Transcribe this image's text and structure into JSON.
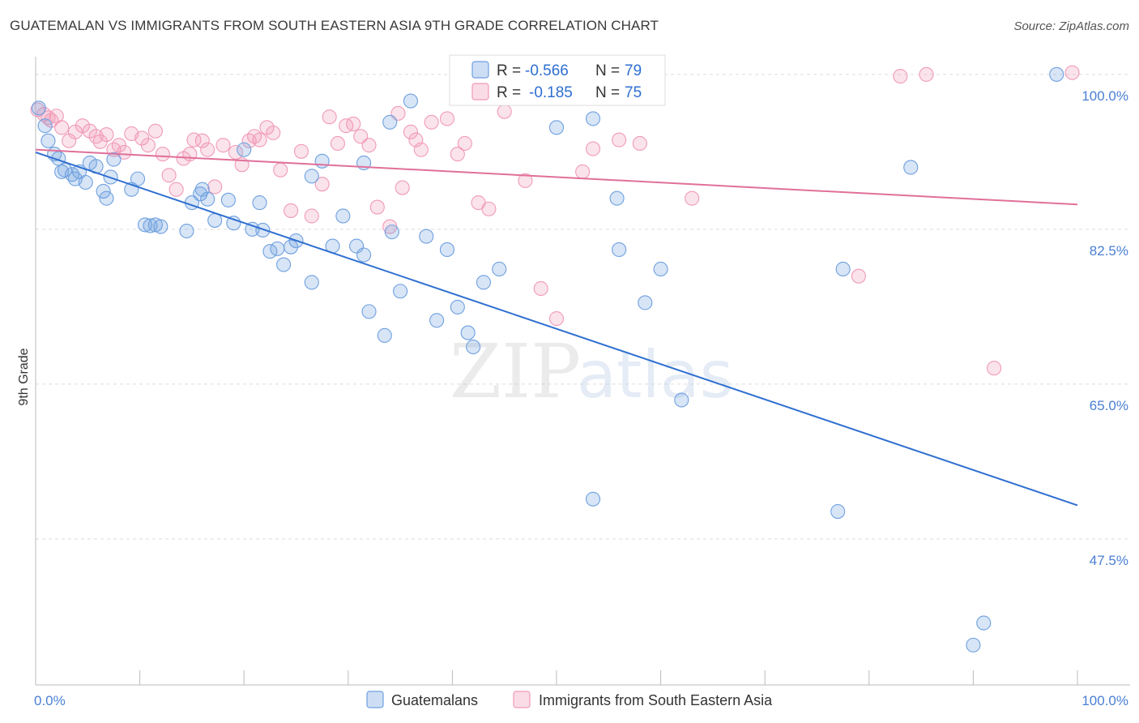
{
  "header": {
    "title": "GUATEMALAN VS IMMIGRANTS FROM SOUTH EASTERN ASIA 9TH GRADE CORRELATION CHART",
    "source": "Source: ZipAtlas.com"
  },
  "watermark": {
    "zip": "ZIP",
    "atlas": "atlas"
  },
  "colors": {
    "blue": "#6fa0e0",
    "blue_line": "#2f6fd0",
    "pink": "#f09ab8",
    "pink_line": "#e0709a",
    "tick_text": "#4a7fd4"
  },
  "stats_legend": {
    "blue": {
      "r_label": "R =",
      "r_value": "-0.566",
      "n_label": "N =",
      "n_value": "79"
    },
    "pink": {
      "r_label": "R =",
      "r_value": "-0.185",
      "n_label": "N =",
      "n_value": "75"
    }
  },
  "chart_data": {
    "type": "scatter",
    "title": "GUATEMALAN VS IMMIGRANTS FROM SOUTH EASTERN ASIA 9TH GRADE CORRELATION CHART",
    "xlabel": "",
    "ylabel": "9th Grade",
    "xlim": [
      0,
      100
    ],
    "ylim": [
      31,
      102
    ],
    "x_tick_labels": [
      "0.0%",
      "100.0%"
    ],
    "y_ticks": [
      100.0,
      82.5,
      65.0,
      47.5
    ],
    "y_tick_labels": [
      "100.0%",
      "82.5%",
      "65.0%",
      "47.5%"
    ],
    "grid": true,
    "legend_position": "bottom",
    "series": [
      {
        "name": "Guatemalans",
        "color": "#6fa0e0",
        "trend": {
          "x": [
            0,
            100
          ],
          "y": [
            91.2,
            51.3
          ]
        },
        "points": [
          [
            0.3,
            96.2
          ],
          [
            0.9,
            94.2
          ],
          [
            1.2,
            92.5
          ],
          [
            1.8,
            91.0
          ],
          [
            2.2,
            90.5
          ],
          [
            2.5,
            89.0
          ],
          [
            2.8,
            89.2
          ],
          [
            3.5,
            88.7
          ],
          [
            3.8,
            88.2
          ],
          [
            4.2,
            89.0
          ],
          [
            4.8,
            87.8
          ],
          [
            5.2,
            90.0
          ],
          [
            5.8,
            89.6
          ],
          [
            6.5,
            86.8
          ],
          [
            6.8,
            86.0
          ],
          [
            7.2,
            88.4
          ],
          [
            7.5,
            90.4
          ],
          [
            9.2,
            87.0
          ],
          [
            9.8,
            88.2
          ],
          [
            10.5,
            83.0
          ],
          [
            11.0,
            82.9
          ],
          [
            11.5,
            83.0
          ],
          [
            12.0,
            82.8
          ],
          [
            14.5,
            82.3
          ],
          [
            15.0,
            85.5
          ],
          [
            15.8,
            86.5
          ],
          [
            16.5,
            85.9
          ],
          [
            17.2,
            83.5
          ],
          [
            18.5,
            85.8
          ],
          [
            19.0,
            83.2
          ],
          [
            20.0,
            91.5
          ],
          [
            20.8,
            82.5
          ],
          [
            21.5,
            85.5
          ],
          [
            21.8,
            82.4
          ],
          [
            22.5,
            80.0
          ],
          [
            23.2,
            80.3
          ],
          [
            23.8,
            78.5
          ],
          [
            24.5,
            80.5
          ],
          [
            25.0,
            81.2
          ],
          [
            26.5,
            76.5
          ],
          [
            26.5,
            88.5
          ],
          [
            27.5,
            90.2
          ],
          [
            28.5,
            80.6
          ],
          [
            29.5,
            84.0
          ],
          [
            30.8,
            80.6
          ],
          [
            31.5,
            90.0
          ],
          [
            31.5,
            79.6
          ],
          [
            32.0,
            73.2
          ],
          [
            33.5,
            70.5
          ],
          [
            34.0,
            94.6
          ],
          [
            34.2,
            82.2
          ],
          [
            35.0,
            75.5
          ],
          [
            36.0,
            97.0
          ],
          [
            37.5,
            81.7
          ],
          [
            38.5,
            72.2
          ],
          [
            39.5,
            80.2
          ],
          [
            40.5,
            73.7
          ],
          [
            41.5,
            70.8
          ],
          [
            42.0,
            69.2
          ],
          [
            43.0,
            76.5
          ],
          [
            44.5,
            78.0
          ],
          [
            46.5,
            97.5
          ],
          [
            47.2,
            100.0
          ],
          [
            50.0,
            94.0
          ],
          [
            53.5,
            52.0
          ],
          [
            53.5,
            95.0
          ],
          [
            55.8,
            86.0
          ],
          [
            56.0,
            80.2
          ],
          [
            58.5,
            74.2
          ],
          [
            58.5,
            100.5
          ],
          [
            60.0,
            78.0
          ],
          [
            62.0,
            63.2
          ],
          [
            77.0,
            50.6
          ],
          [
            77.5,
            78.0
          ],
          [
            84.0,
            89.5
          ],
          [
            90.0,
            35.5
          ],
          [
            91.0,
            38.0
          ],
          [
            98.0,
            100.0
          ],
          [
            16.0,
            87.0
          ]
        ]
      },
      {
        "name": "Immigrants from South Eastern Asia",
        "color": "#f09ab8",
        "trend": {
          "x": [
            0,
            100
          ],
          "y": [
            91.5,
            85.3
          ]
        },
        "points": [
          [
            0.2,
            96.0
          ],
          [
            0.8,
            95.5
          ],
          [
            1.2,
            95.1
          ],
          [
            1.5,
            94.8
          ],
          [
            2.0,
            95.3
          ],
          [
            2.5,
            94.0
          ],
          [
            3.2,
            92.5
          ],
          [
            3.8,
            93.5
          ],
          [
            4.5,
            94.2
          ],
          [
            5.2,
            93.6
          ],
          [
            5.8,
            93.0
          ],
          [
            6.2,
            92.4
          ],
          [
            6.8,
            93.2
          ],
          [
            7.5,
            91.5
          ],
          [
            8.0,
            92.0
          ],
          [
            8.5,
            91.2
          ],
          [
            9.2,
            93.3
          ],
          [
            10.2,
            92.8
          ],
          [
            10.8,
            92.0
          ],
          [
            11.5,
            93.6
          ],
          [
            12.2,
            91.0
          ],
          [
            12.8,
            88.6
          ],
          [
            13.5,
            87.0
          ],
          [
            14.2,
            90.5
          ],
          [
            14.8,
            91.0
          ],
          [
            15.2,
            92.6
          ],
          [
            16.0,
            92.5
          ],
          [
            16.5,
            91.5
          ],
          [
            17.2,
            87.3
          ],
          [
            18.0,
            92.0
          ],
          [
            19.2,
            91.2
          ],
          [
            19.8,
            89.8
          ],
          [
            20.5,
            92.5
          ],
          [
            21.0,
            93.0
          ],
          [
            21.5,
            92.6
          ],
          [
            22.2,
            94.0
          ],
          [
            22.8,
            93.4
          ],
          [
            23.5,
            89.2
          ],
          [
            24.5,
            84.6
          ],
          [
            25.5,
            91.3
          ],
          [
            26.5,
            84.0
          ],
          [
            27.5,
            87.6
          ],
          [
            28.2,
            95.2
          ],
          [
            29.0,
            92.2
          ],
          [
            29.8,
            94.2
          ],
          [
            30.5,
            94.4
          ],
          [
            31.2,
            93.0
          ],
          [
            32.0,
            92.0
          ],
          [
            32.8,
            85.0
          ],
          [
            34.0,
            82.8
          ],
          [
            34.8,
            95.6
          ],
          [
            35.2,
            87.2
          ],
          [
            36.0,
            93.5
          ],
          [
            36.5,
            92.6
          ],
          [
            37.0,
            91.5
          ],
          [
            38.0,
            94.6
          ],
          [
            39.5,
            95.0
          ],
          [
            40.5,
            91.0
          ],
          [
            41.2,
            92.2
          ],
          [
            42.5,
            85.5
          ],
          [
            43.5,
            84.8
          ],
          [
            45.0,
            95.8
          ],
          [
            47.0,
            88.0
          ],
          [
            48.5,
            75.8
          ],
          [
            50.0,
            72.4
          ],
          [
            52.5,
            89.0
          ],
          [
            53.5,
            91.6
          ],
          [
            56.0,
            92.6
          ],
          [
            58.0,
            92.2
          ],
          [
            63.0,
            86.0
          ],
          [
            79.0,
            77.2
          ],
          [
            83.0,
            99.8
          ],
          [
            85.5,
            100.0
          ],
          [
            92.0,
            66.8
          ],
          [
            99.5,
            100.2
          ]
        ]
      }
    ]
  },
  "bottom_legend": {
    "blue_label": "Guatemalans",
    "pink_label": "Immigrants from South Eastern Asia"
  }
}
